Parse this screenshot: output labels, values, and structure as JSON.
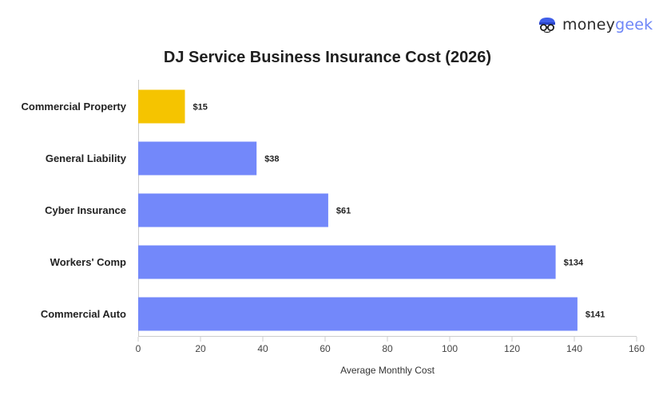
{
  "brand": {
    "part1": "money",
    "part2": "geek",
    "icon": "moneygeek-face-icon"
  },
  "chart_data": {
    "type": "bar",
    "orientation": "horizontal",
    "title": "DJ Service Business Insurance Cost (2026)",
    "xlabel": "Average Monthly Cost",
    "ylabel": "",
    "categories": [
      "Commercial Property",
      "General Liability",
      "Cyber Insurance",
      "Workers' Comp",
      "Commercial Auto"
    ],
    "values": [
      15,
      38,
      61,
      134,
      141
    ],
    "data_labels": [
      "$15",
      "$38",
      "$61",
      "$134",
      "$141"
    ],
    "bar_colors": [
      "#f5c400",
      "#7388fa",
      "#7388fa",
      "#7388fa",
      "#7388fa"
    ],
    "xlim": [
      0,
      160
    ],
    "xticks": [
      0,
      20,
      40,
      60,
      80,
      100,
      120,
      140,
      160
    ],
    "grid": false,
    "legend": "none"
  }
}
